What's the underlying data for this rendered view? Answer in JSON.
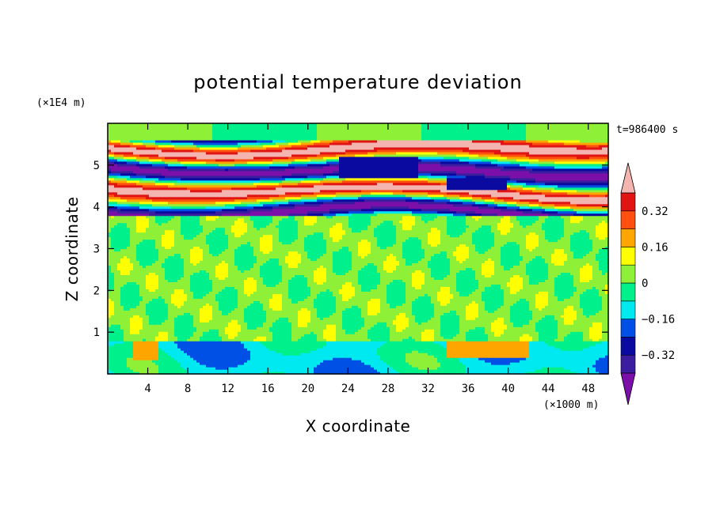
{
  "chart_data": {
    "type": "heatmap",
    "title": "potential temperature deviation",
    "xlabel": "X coordinate",
    "ylabel": "Z coordinate",
    "x_unit": "(×1000 m)",
    "y_unit": "(×1E4 m)",
    "time_label": "t=986400 s",
    "xlim": [
      0,
      50
    ],
    "ylim": [
      0,
      6
    ],
    "x_ticks": [
      "4",
      "8",
      "12",
      "16",
      "20",
      "24",
      "28",
      "32",
      "36",
      "40",
      "44",
      "48"
    ],
    "y_ticks": [
      "1",
      "2",
      "3",
      "4",
      "5"
    ],
    "colorbar": {
      "levels": [
        -0.4,
        -0.32,
        -0.24,
        -0.16,
        -0.08,
        0,
        0.08,
        0.16,
        0.24,
        0.32,
        0.4
      ],
      "tick_labels": [
        "0.32",
        "0.16",
        "0",
        "−0.16",
        "−0.32"
      ],
      "colors": [
        "#7b0fa8",
        "#3b1ea0",
        "#0a0aa0",
        "#0050e6",
        "#00e8f0",
        "#00f08c",
        "#8ef037",
        "#ffff00",
        "#ffa500",
        "#ff5010",
        "#e11414",
        "#f4b4b0"
      ],
      "extend": "both"
    },
    "description_bands": [
      {
        "z_range": [
          0,
          0.8
        ],
        "pattern": "cyan/green near surface with yellow and orange patches near x=4 and x=36-40"
      },
      {
        "z_range": [
          0.8,
          3.8
        ],
        "pattern": "mottled green (near zero)"
      },
      {
        "z_range": [
          3.8,
          5.6
        ],
        "pattern": "alternating purple and pink/red layers with blue pockets"
      },
      {
        "z_range": [
          5.6,
          6.0
        ],
        "pattern": "green"
      }
    ]
  }
}
